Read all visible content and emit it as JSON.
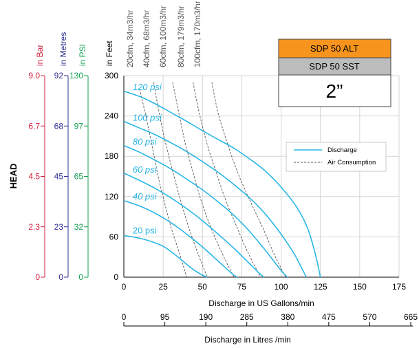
{
  "chart_data": {
    "type": "line",
    "xlabel": "Discharge in US Gallons/min",
    "x2label": "Discharge in Litres /min",
    "y_side_label": "HEAD",
    "x_ticks": [
      "0",
      "25",
      "50",
      "75",
      "100",
      "125",
      "150",
      "175"
    ],
    "x2_ticks": [
      "0",
      "95",
      "190",
      "285",
      "380",
      "475",
      "570",
      "665"
    ],
    "xlim": [
      0,
      175
    ],
    "ylim": [
      0,
      300
    ],
    "grid": true,
    "legend_position": "right",
    "legend": {
      "discharge": "Discharge",
      "air": "Air Consumption"
    },
    "colors": {
      "discharge": "#29b6e6",
      "air": "#555555",
      "bar_axis": "#d21f3c",
      "metres_axis": "#2d2f8f",
      "psi_axis": "#12a050",
      "feet_axis": "#000000",
      "alt_fill": "#f7941d",
      "sst_fill": "#bcbcbc"
    },
    "axes": {
      "feet": {
        "title": "in Feet",
        "ticks": [
          "0",
          "60",
          "120",
          "180",
          "240",
          "300"
        ]
      },
      "psi": {
        "title": "in PSI",
        "ticks": [
          "0",
          "32",
          "65",
          "97",
          "130"
        ]
      },
      "metres": {
        "title": "in Metres",
        "ticks": [
          "0",
          "23",
          "45",
          "68",
          "92"
        ]
      },
      "bar": {
        "title": "in Bar",
        "ticks": [
          "0",
          "2.3",
          "4.5",
          "6.7",
          "9.0"
        ]
      }
    },
    "series": [
      {
        "name": "120 psi",
        "x": [
          0,
          10,
          20,
          30,
          40,
          50,
          60,
          70,
          80,
          90,
          100,
          110,
          117,
          122,
          125
        ],
        "y": [
          277,
          269,
          258,
          245,
          232,
          218,
          205,
          192,
          176,
          158,
          134,
          104,
          72,
          32,
          0
        ]
      },
      {
        "name": "100 psi",
        "x": [
          0,
          10,
          20,
          30,
          40,
          50,
          60,
          70,
          80,
          90,
          100,
          108,
          113,
          116
        ],
        "y": [
          232,
          222,
          212,
          200,
          187,
          172,
          156,
          138,
          118,
          94,
          64,
          36,
          14,
          0
        ]
      },
      {
        "name": "80 psi",
        "x": [
          0,
          10,
          20,
          30,
          40,
          50,
          60,
          70,
          80,
          90,
          100,
          104
        ],
        "y": [
          196,
          186,
          174,
          161,
          146,
          130,
          112,
          92,
          68,
          40,
          10,
          0
        ]
      },
      {
        "name": "60 psi",
        "x": [
          0,
          10,
          20,
          30,
          40,
          50,
          60,
          70,
          80,
          86,
          89
        ],
        "y": [
          155,
          144,
          132,
          118,
          102,
          84,
          64,
          43,
          20,
          6,
          0
        ]
      },
      {
        "name": "40 psi",
        "x": [
          0,
          10,
          20,
          30,
          40,
          50,
          60,
          66,
          70,
          72
        ],
        "y": [
          114,
          106,
          95,
          81,
          64,
          45,
          24,
          11,
          3,
          0
        ]
      },
      {
        "name": "20 psi",
        "x": [
          0,
          10,
          20,
          25,
          30,
          35,
          40,
          45,
          50,
          53
        ],
        "y": [
          62,
          58,
          51,
          46,
          38,
          29,
          19,
          10,
          3,
          0
        ]
      }
    ],
    "air_lines": [
      {
        "label": "20cfm, 34m3/hr",
        "x": [
          10,
          14,
          18,
          22,
          26,
          30,
          35,
          40
        ],
        "y": [
          280,
          240,
          195,
          148,
          110,
          74,
          38,
          0
        ]
      },
      {
        "label": "40cfm, 68m3/hr",
        "x": [
          19,
          22,
          26,
          31,
          36,
          41,
          47,
          53
        ],
        "y": [
          290,
          250,
          205,
          158,
          115,
          76,
          36,
          0
        ]
      },
      {
        "label": "60cfm, 100m3/hr",
        "x": [
          31,
          35,
          39,
          44,
          49,
          55,
          62,
          70
        ],
        "y": [
          290,
          244,
          200,
          156,
          115,
          76,
          38,
          0
        ]
      },
      {
        "label": "80cfm, 179m3/hr",
        "x": [
          44,
          48,
          53,
          59,
          65,
          72,
          79,
          87
        ],
        "y": [
          290,
          244,
          198,
          154,
          113,
          74,
          36,
          0
        ]
      },
      {
        "label": "100cfm, 170m3/hr",
        "x": [
          56,
          60,
          66,
          73,
          81,
          89,
          96,
          103
        ],
        "y": [
          290,
          244,
          198,
          152,
          110,
          70,
          32,
          0
        ]
      }
    ]
  },
  "info_box": {
    "model_alt": "SDP 50 ALT",
    "model_sst": "SDP 50 SST",
    "size": "2”"
  }
}
